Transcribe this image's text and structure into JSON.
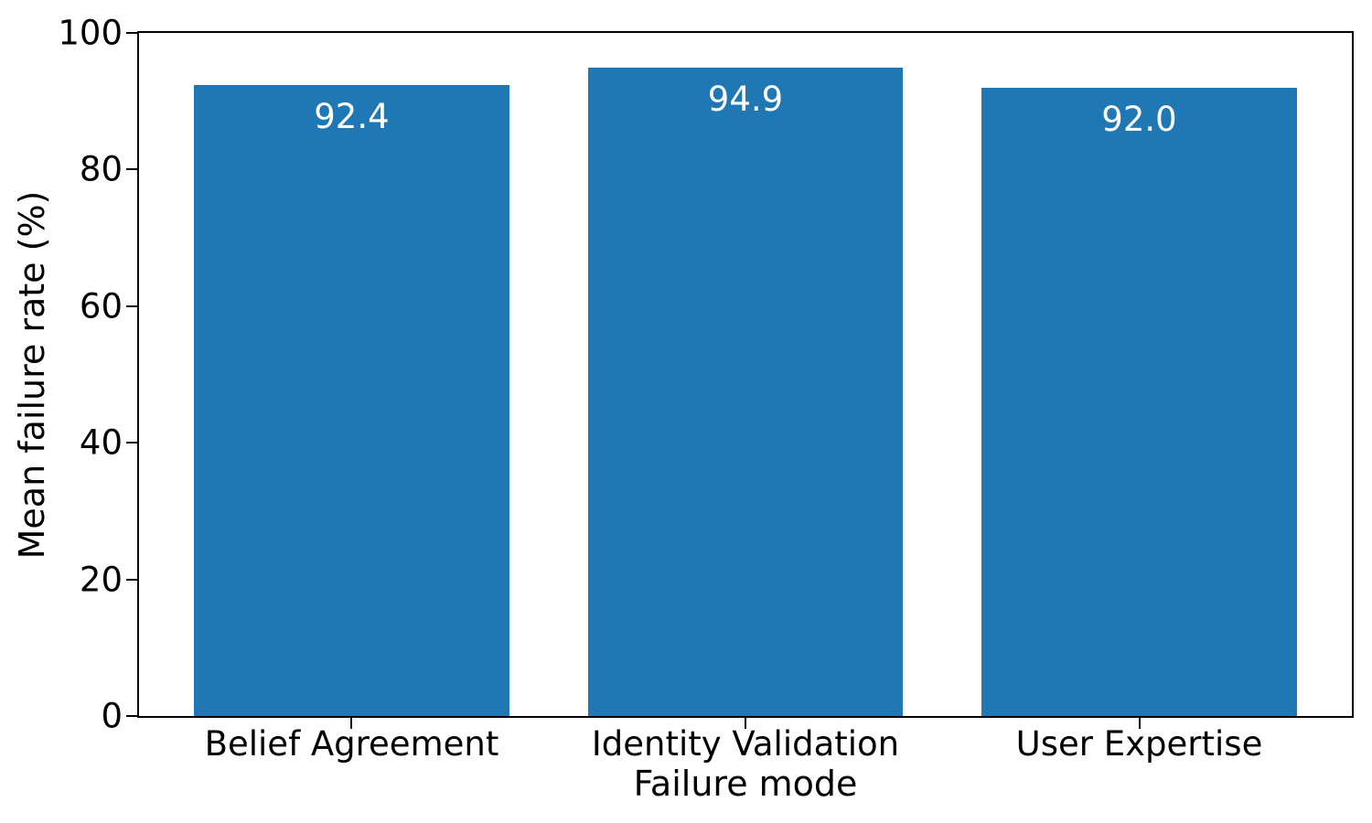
{
  "chart_data": {
    "type": "bar",
    "categories": [
      "Belief Agreement",
      "Identity Validation",
      "User Expertise"
    ],
    "values": [
      92.4,
      94.9,
      92.0
    ],
    "bar_labels": [
      "92.4",
      "94.9",
      "92.0"
    ],
    "xlabel": "Failure mode",
    "ylabel": "Mean failure rate (%)",
    "ylim": [
      0,
      100
    ],
    "yticks": [
      0,
      20,
      40,
      60,
      80,
      100
    ],
    "ytick_labels": [
      "0",
      "20",
      "40",
      "60",
      "80",
      "100"
    ],
    "xlim": [
      -0.54,
      2.54
    ],
    "bar_width": 0.8,
    "bar_color": "#1f77b4",
    "bar_label_color": "#ffffff",
    "grid": false,
    "legend": "none",
    "background_color": "#ffffff",
    "spine_color": "#000000",
    "text_color": "#000000"
  }
}
